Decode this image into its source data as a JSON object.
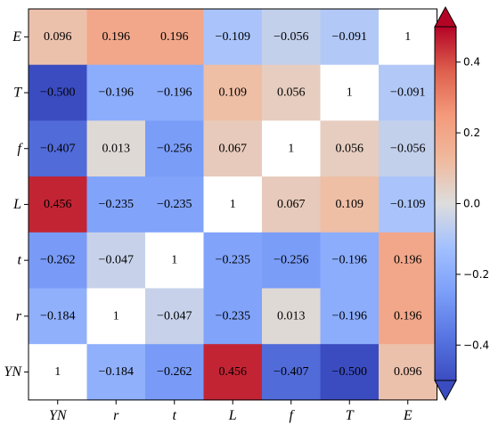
{
  "chart_data": {
    "type": "heatmap",
    "row_labels": [
      "E",
      "T",
      "f",
      "L",
      "t",
      "r",
      "YN"
    ],
    "col_labels": [
      "YN",
      "r",
      "t",
      "L",
      "f",
      "T",
      "E"
    ],
    "value_labels": [
      [
        "0.096",
        "0.196",
        "0.196",
        "−0.109",
        "−0.056",
        "−0.091",
        "1"
      ],
      [
        "−0.500",
        "−0.196",
        "−0.196",
        "0.109",
        "0.056",
        "1",
        "−0.091"
      ],
      [
        "−0.407",
        "0.013",
        "−0.256",
        "0.067",
        "1",
        "0.056",
        "−0.056"
      ],
      [
        "0.456",
        "−0.235",
        "−0.235",
        "1",
        "0.067",
        "0.109",
        "−0.109"
      ],
      [
        "−0.262",
        "−0.047",
        "1",
        "−0.235",
        "−0.256",
        "−0.196",
        "0.196"
      ],
      [
        "−0.184",
        "1",
        "−0.047",
        "−0.235",
        "0.013",
        "−0.196",
        "0.196"
      ],
      [
        "1",
        "−0.184",
        "−0.262",
        "0.456",
        "−0.407",
        "−0.500",
        "0.096"
      ]
    ],
    "values": [
      [
        0.096,
        0.196,
        0.196,
        -0.109,
        -0.056,
        -0.091,
        1
      ],
      [
        -0.5,
        -0.196,
        -0.196,
        0.109,
        0.056,
        1,
        -0.091
      ],
      [
        -0.407,
        0.013,
        -0.256,
        0.067,
        1,
        0.056,
        -0.056
      ],
      [
        0.456,
        -0.235,
        -0.235,
        1,
        0.067,
        0.109,
        -0.109
      ],
      [
        -0.262,
        -0.047,
        1,
        -0.235,
        -0.256,
        -0.196,
        0.196
      ],
      [
        -0.184,
        1,
        -0.047,
        -0.235,
        0.013,
        -0.196,
        0.196
      ],
      [
        1,
        -0.184,
        -0.262,
        0.456,
        -0.407,
        -0.5,
        0.096
      ]
    ],
    "colormap": "coolwarm",
    "vmin": -0.5,
    "vmax": 0.5,
    "colorbar": {
      "ticks": [
        0.4,
        0.2,
        0.0,
        -0.2,
        -0.4
      ],
      "tick_labels": [
        "0.4",
        "0.2",
        "0.0",
        "−0.2",
        "−0.4"
      ],
      "extend": "both"
    },
    "diagonal_color": "#ffffff",
    "title": "",
    "xlabel": "",
    "ylabel": ""
  }
}
